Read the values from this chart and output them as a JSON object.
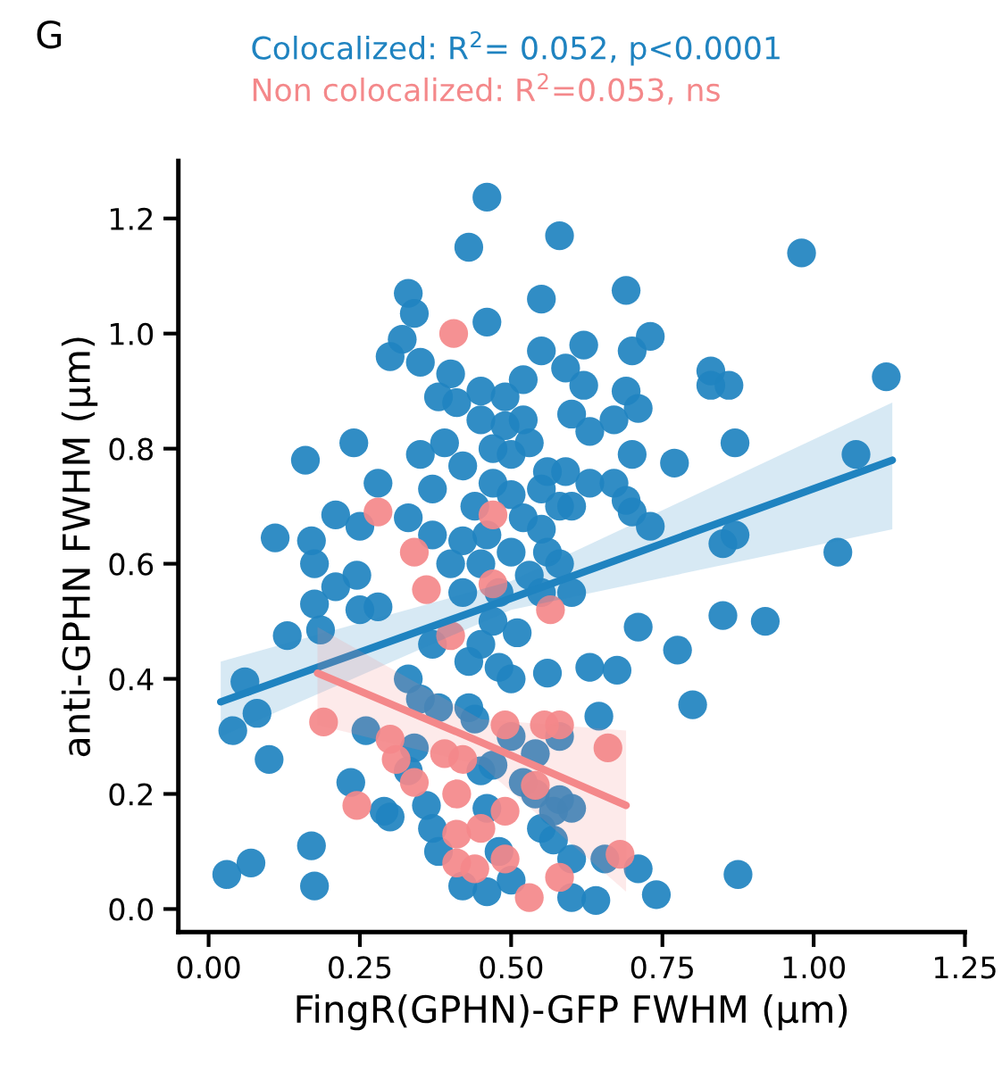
{
  "chart_data": {
    "type": "scatter",
    "xlabel": "FingR(GPHN)-GFP FWHM (µm)",
    "ylabel": "anti-GPHN FWHM (µm)",
    "annotations": [
      "G"
    ],
    "xlim": [
      -0.05,
      1.25
    ],
    "ylim": [
      -0.04,
      1.3
    ],
    "xticks": [
      {
        "value": 0,
        "label": "0.00"
      },
      {
        "value": 0.25,
        "label": "0.25"
      },
      {
        "value": 0.5,
        "label": "0.50"
      },
      {
        "value": 0.75,
        "label": "0.75"
      },
      {
        "value": 1.0,
        "label": "1.00"
      },
      {
        "value": 1.25,
        "label": "1.25"
      }
    ],
    "yticks": [
      {
        "value": 0,
        "label": "0.0"
      },
      {
        "value": 0.2,
        "label": "0.2"
      },
      {
        "value": 0.4,
        "label": "0.4"
      },
      {
        "value": 0.6,
        "label": "0.6"
      },
      {
        "value": 0.8,
        "label": "0.8"
      },
      {
        "value": 1.0,
        "label": "1.0"
      },
      {
        "value": 1.2,
        "label": "1.2"
      }
    ],
    "grid": false,
    "legend": "top",
    "series": [
      {
        "name": "Colocalized: R$^{2}$= 0.052, p<0.0001",
        "color": "#1f83c0",
        "marker": "circle",
        "x": [
          0.46,
          0.43,
          0.58,
          0.33,
          0.34,
          0.55,
          0.46,
          0.32,
          0.3,
          0.35,
          0.4,
          0.38,
          0.41,
          0.49,
          0.52,
          0.55,
          0.62,
          0.59,
          0.45,
          0.49,
          0.24,
          0.16,
          0.35,
          0.39,
          0.5,
          0.53,
          0.56,
          0.42,
          0.47,
          0.21,
          0.28,
          0.11,
          0.17,
          0.25,
          0.33,
          0.37,
          0.55,
          0.58,
          0.55,
          0.37,
          0.42,
          0.98,
          0.69,
          0.73,
          0.7,
          0.83,
          0.86,
          0.83,
          1.12,
          0.62,
          0.69,
          0.71,
          0.67,
          0.63,
          0.6,
          0.87,
          0.77,
          0.7,
          1.07,
          0.67,
          0.69,
          0.63,
          0.59,
          0.73,
          0.7,
          0.85,
          0.87,
          1.04,
          0.6,
          0.175,
          0.245,
          0.21,
          0.175,
          0.28,
          0.25,
          0.13,
          0.185,
          0.37,
          0.45,
          0.06,
          0.08,
          0.04,
          0.1,
          0.26,
          0.33,
          0.35,
          0.38,
          0.43,
          0.48,
          0.235,
          0.29,
          0.3,
          0.34,
          0.37,
          0.45,
          0.46,
          0.17,
          0.07,
          0.03,
          0.175,
          0.5,
          0.46,
          0.42,
          0.55,
          0.54,
          0.54,
          0.58,
          0.57,
          0.6,
          0.71,
          0.85,
          0.92,
          0.775,
          0.63,
          0.675,
          0.56,
          0.8,
          0.645,
          0.58,
          0.6,
          0.57,
          0.6,
          0.655,
          0.71,
          0.74,
          0.64,
          0.875,
          0.45,
          0.48,
          0.5,
          0.52,
          0.44,
          0.5,
          0.53,
          0.47,
          0.51,
          0.42,
          0.56,
          0.46,
          0.4,
          0.55,
          0.43,
          0.5,
          0.58,
          0.6,
          0.52,
          0.45,
          0.47,
          0.47,
          0.5,
          0.44,
          0.52,
          0.48,
          0.38,
          0.36,
          0.33
        ],
        "values": [
          1.237,
          1.15,
          1.17,
          1.07,
          1.035,
          1.06,
          1.02,
          0.99,
          0.96,
          0.95,
          0.93,
          0.89,
          0.88,
          0.89,
          0.92,
          0.97,
          0.98,
          0.94,
          0.85,
          0.84,
          0.81,
          0.78,
          0.79,
          0.81,
          0.79,
          0.81,
          0.76,
          0.77,
          0.74,
          0.685,
          0.74,
          0.645,
          0.64,
          0.665,
          0.68,
          0.73,
          0.73,
          0.7,
          0.66,
          0.65,
          0.64,
          1.14,
          1.075,
          0.995,
          0.97,
          0.935,
          0.91,
          0.91,
          0.925,
          0.91,
          0.9,
          0.87,
          0.85,
          0.83,
          0.86,
          0.81,
          0.775,
          0.79,
          0.79,
          0.74,
          0.71,
          0.74,
          0.76,
          0.665,
          0.69,
          0.635,
          0.65,
          0.62,
          0.7,
          0.6,
          0.58,
          0.56,
          0.53,
          0.525,
          0.52,
          0.475,
          0.485,
          0.46,
          0.46,
          0.395,
          0.34,
          0.31,
          0.26,
          0.31,
          0.4,
          0.365,
          0.35,
          0.35,
          0.42,
          0.22,
          0.17,
          0.16,
          0.28,
          0.14,
          0.24,
          0.175,
          0.11,
          0.08,
          0.06,
          0.04,
          0.05,
          0.03,
          0.04,
          0.14,
          0.2,
          0.27,
          0.19,
          0.12,
          0.02,
          0.49,
          0.51,
          0.5,
          0.45,
          0.42,
          0.415,
          0.41,
          0.355,
          0.335,
          0.3,
          0.175,
          0.17,
          0.087,
          0.087,
          0.07,
          0.025,
          0.015,
          0.06,
          0.6,
          0.55,
          0.62,
          0.68,
          0.7,
          0.72,
          0.58,
          0.5,
          0.48,
          0.55,
          0.62,
          0.65,
          0.6,
          0.55,
          0.43,
          0.4,
          0.6,
          0.55,
          0.85,
          0.9,
          0.8,
          0.25,
          0.3,
          0.33,
          0.22,
          0.1,
          0.1,
          0.18,
          0.24
        ]
      },
      {
        "name": "Non colocalized: R$^{2}$=0.053, ns",
        "color": "#f4888a",
        "marker": "circle",
        "x": [
          0.405,
          0.28,
          0.47,
          0.34,
          0.36,
          0.47,
          0.565,
          0.4,
          0.19,
          0.49,
          0.245,
          0.3,
          0.31,
          0.34,
          0.39,
          0.42,
          0.41,
          0.41,
          0.49,
          0.45,
          0.41,
          0.44,
          0.49,
          0.53,
          0.58,
          0.54,
          0.555,
          0.58,
          0.66,
          0.68
        ],
        "values": [
          1.0,
          0.69,
          0.685,
          0.62,
          0.555,
          0.565,
          0.52,
          0.475,
          0.325,
          0.32,
          0.18,
          0.295,
          0.26,
          0.22,
          0.27,
          0.26,
          0.13,
          0.2,
          0.17,
          0.14,
          0.08,
          0.07,
          0.087,
          0.02,
          0.055,
          0.215,
          0.32,
          0.32,
          0.28,
          0.095
        ]
      },
      {
        "color": "#1f83c0",
        "type": "line",
        "x": [
          0.02,
          0.5,
          1.13
        ],
        "values": [
          0.36,
          0.54,
          0.78
        ],
        "lower": [
          0.3,
          0.52,
          0.66
        ],
        "upper": [
          0.43,
          0.57,
          0.88
        ]
      },
      {
        "color": "#f4888a",
        "type": "line",
        "x": [
          0.18,
          0.45,
          0.69
        ],
        "values": [
          0.41,
          0.29,
          0.18
        ],
        "lower": [
          0.32,
          0.25,
          0.03
        ],
        "upper": [
          0.49,
          0.33,
          0.31
        ]
      }
    ]
  }
}
